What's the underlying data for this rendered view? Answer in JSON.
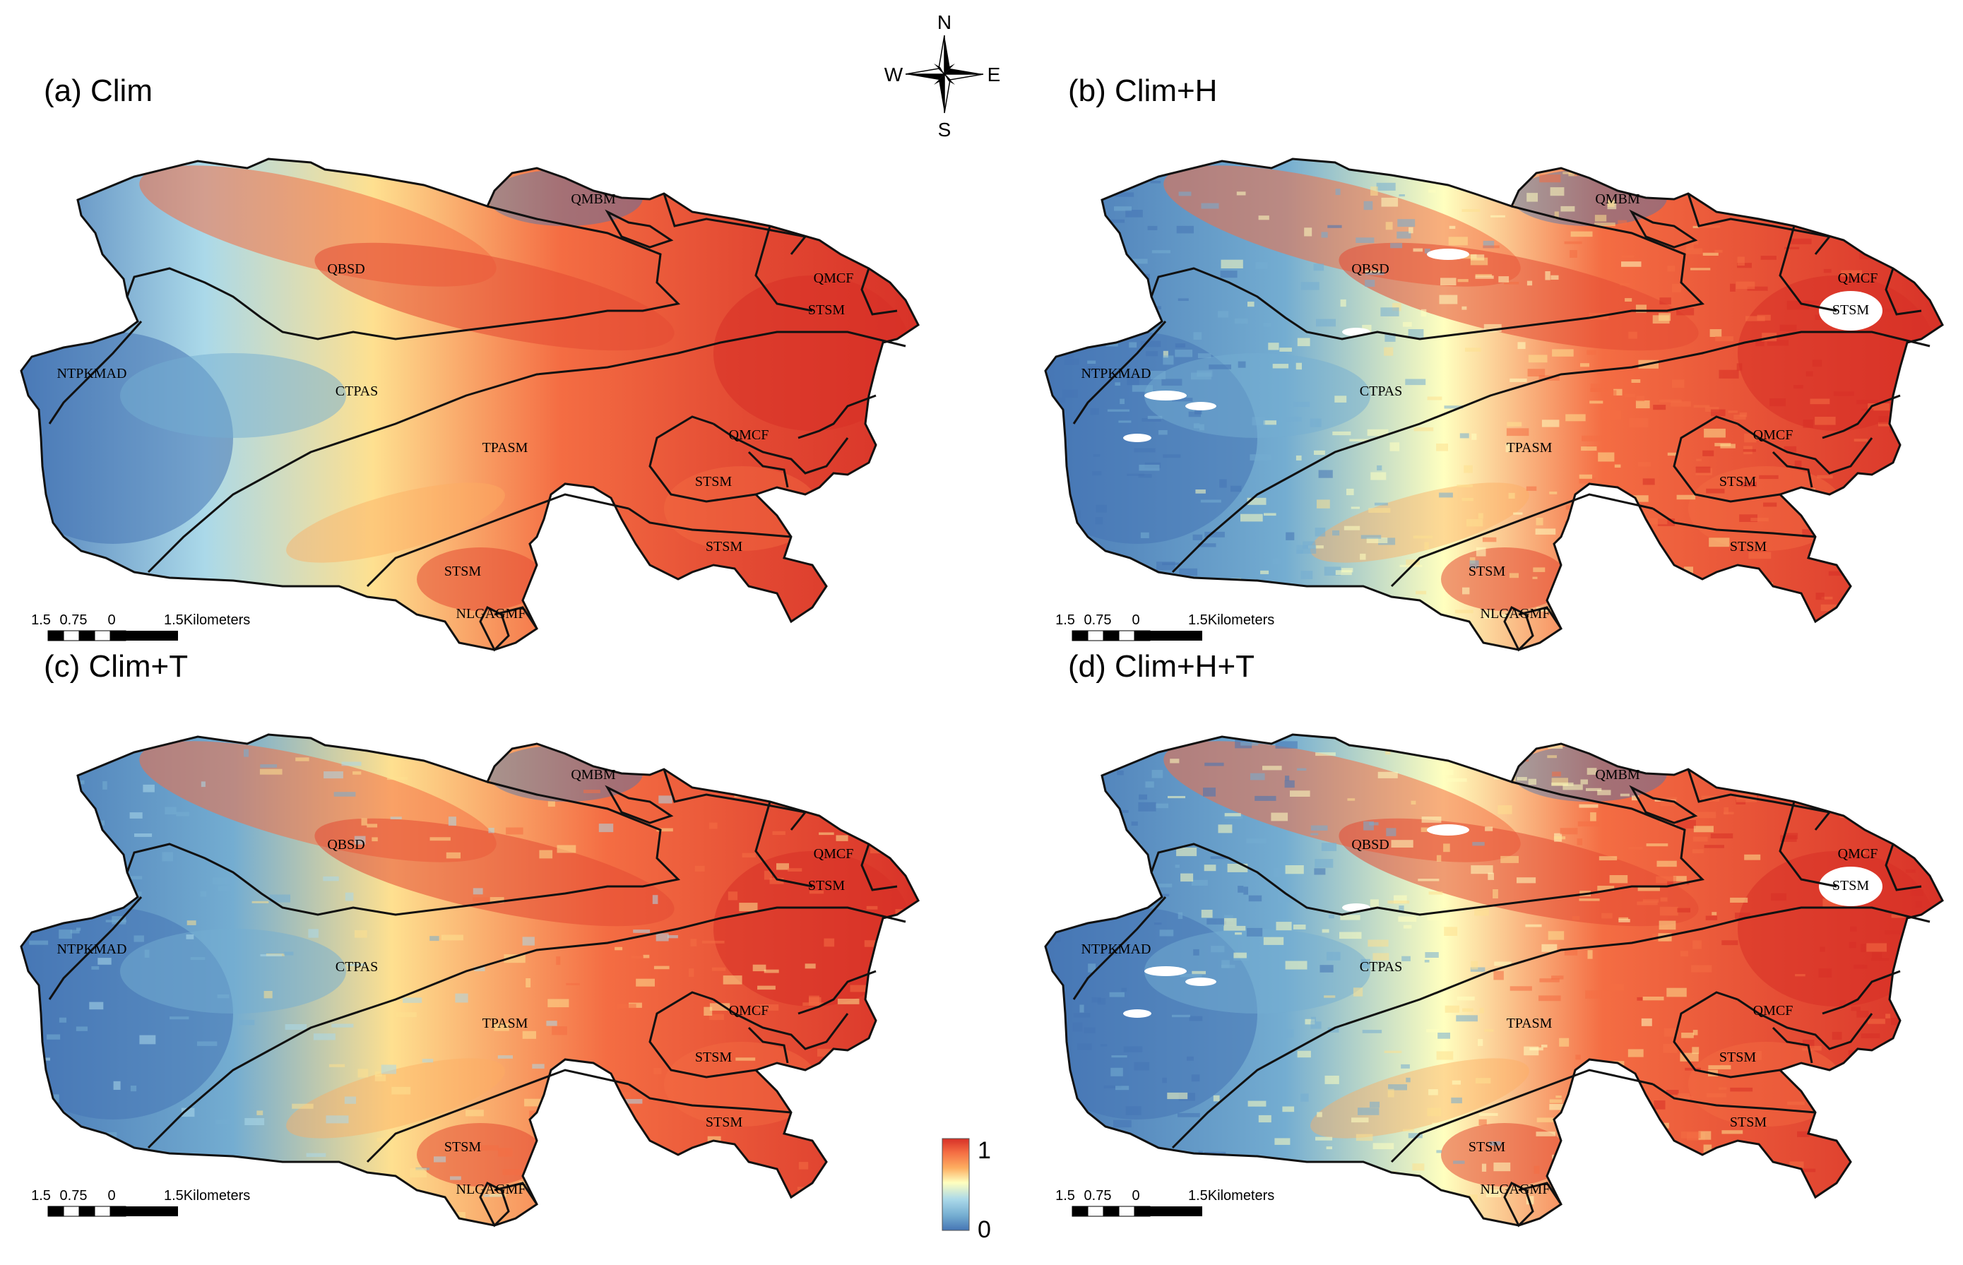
{
  "panels": [
    {
      "id": "a",
      "title": "(a) Clim",
      "style": "clim"
    },
    {
      "id": "b",
      "title": "(b) Clim+H",
      "style": "speckle"
    },
    {
      "id": "c",
      "title": "(c) Clim+T",
      "style": "mid"
    },
    {
      "id": "d",
      "title": "(d) Clim+H+T",
      "style": "speckle"
    }
  ],
  "regions": [
    "QMBM",
    "QBSD",
    "QMCF",
    "STSM",
    "NTPKMAD",
    "CTPAS",
    "TPASM",
    "QMCF",
    "STSM",
    "STSM",
    "STSM",
    "NLGAGMF"
  ],
  "compass": {
    "n": "N",
    "s": "S",
    "e": "E",
    "w": "W",
    "icon": "compass-rose-icon"
  },
  "scalebar": {
    "labels": [
      "1.5",
      "0.75",
      "0",
      "1.5Kilometers"
    ]
  },
  "legend": {
    "max": "1",
    "min": "0",
    "colors": [
      "#d73027",
      "#f46d43",
      "#fdae61",
      "#fee090",
      "#ffffbf",
      "#e0f3f8",
      "#abd9e9",
      "#74add1",
      "#4575b4"
    ]
  }
}
